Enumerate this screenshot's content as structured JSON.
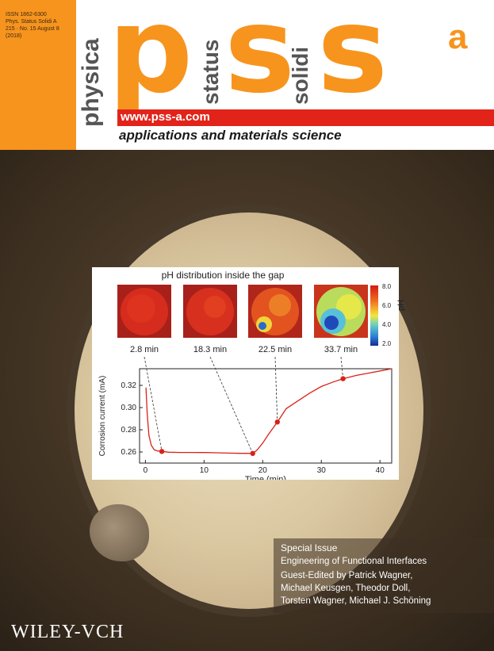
{
  "journal": {
    "issn_line1": "ISSN 1862-6300",
    "issn_line2": "Phys. Status Solidi A",
    "issn_line3": "215 · No. 15 August 8",
    "issn_line4": "(2018)",
    "word_physica": "physica",
    "word_status": "status",
    "word_solidi": "solidi",
    "logo_p": "p",
    "logo_s1": "s",
    "logo_s2": "s",
    "logo_sup": "a",
    "website": "www.pss-a.com",
    "tagline": "applications and materials science",
    "issue_number": "15",
    "issue_year": "2018",
    "publisher": "WILEY-VCH",
    "accent_color": "#f7941e",
    "bar_color": "#e2231a"
  },
  "figure": {
    "title": "pH distribution inside the gap",
    "thumbnails": [
      {
        "label": "2.8 min",
        "palette": "red"
      },
      {
        "label": "18.3 min",
        "palette": "red"
      },
      {
        "label": "22.5 min",
        "palette": "orange-blue"
      },
      {
        "label": "33.7 min",
        "palette": "blue-yellow"
      }
    ],
    "colorbar_ticks": [
      "8.0",
      "6.0",
      "4.0",
      "2.0"
    ],
    "colorbar_label": "pH"
  },
  "chart_data": {
    "type": "line",
    "xlabel": "Time (min)",
    "ylabel": "Corrosion current (mA)",
    "xlim": [
      -1,
      42
    ],
    "ylim": [
      0.25,
      0.335
    ],
    "xticks": [
      "0",
      "10",
      "20",
      "30",
      "40"
    ],
    "yticks": [
      "0.26",
      "0.28",
      "0.30",
      "0.32"
    ],
    "series": [
      {
        "color": "#d6231a",
        "x": [
          0.1,
          0.3,
          0.6,
          1.0,
          1.5,
          2.0,
          2.8,
          4,
          6,
          8,
          10,
          12,
          14,
          16,
          18.3,
          19,
          20,
          21,
          22.5,
          24,
          26,
          28,
          30,
          32,
          33.7,
          36,
          38,
          40,
          42
        ],
        "y": [
          0.318,
          0.295,
          0.275,
          0.266,
          0.262,
          0.261,
          0.2605,
          0.2598,
          0.2596,
          0.2596,
          0.2595,
          0.2593,
          0.259,
          0.2588,
          0.2587,
          0.2615,
          0.268,
          0.276,
          0.287,
          0.299,
          0.306,
          0.313,
          0.319,
          0.323,
          0.326,
          0.329,
          0.331,
          0.333,
          0.335
        ]
      }
    ],
    "markers": [
      {
        "x": 2.8,
        "y": 0.2605
      },
      {
        "x": 18.3,
        "y": 0.2587
      },
      {
        "x": 22.5,
        "y": 0.287
      },
      {
        "x": 33.7,
        "y": 0.326
      }
    ]
  },
  "special_issue": {
    "line1": "Special Issue",
    "line2": "Engineering of Functional Interfaces",
    "line3": "Guest-Edited by Patrick Wagner,",
    "line4": "Michael Keusgen, Theodor Doll,",
    "line5": "Torsten Wagner, Michael J. Schöning"
  }
}
